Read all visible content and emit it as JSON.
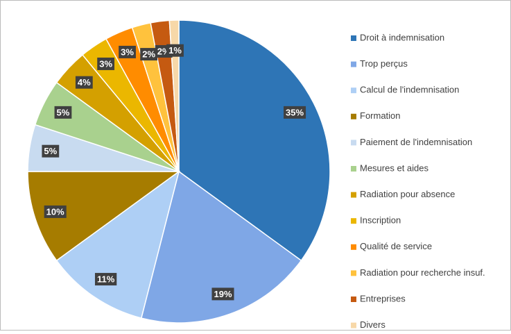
{
  "chart_data": {
    "type": "pie",
    "categories": [
      "Droit à indemnisation",
      "Trop perçus",
      "Calcul de l'indemnisation",
      "Formation",
      "Paiement de l'indemnisation",
      "Mesures et aides",
      "Radiation pour absence",
      "Inscription",
      "Qualité de service",
      "Radiation pour recherche insuf.",
      "Entreprises",
      "Divers"
    ],
    "values": [
      35,
      19,
      11,
      10,
      5,
      5,
      4,
      3,
      3,
      2,
      2,
      1
    ],
    "value_labels": [
      "35%",
      "19%",
      "11%",
      "10%",
      "5%",
      "5%",
      "4%",
      "3%",
      "3%",
      "2%",
      "2%",
      "1%"
    ],
    "colors": [
      "#2e75b6",
      "#7fa7e6",
      "#aecff5",
      "#a67c00",
      "#c8dbf0",
      "#a9d18e",
      "#d4a000",
      "#ebb700",
      "#ff8c00",
      "#ffc23d",
      "#c55a11",
      "#f7d8a8"
    ],
    "legend": "right"
  }
}
